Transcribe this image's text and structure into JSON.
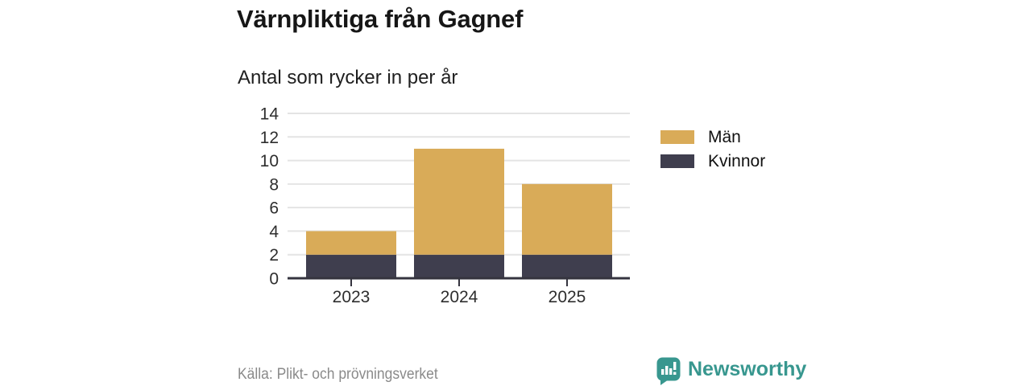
{
  "header": {
    "title": "Värnpliktiga från Gagnef",
    "subtitle": "Antal som rycker in per år"
  },
  "chart_data": {
    "type": "bar",
    "stacked": true,
    "title": "Värnpliktiga från Gagnef",
    "subtitle": "Antal som rycker in per år",
    "categories": [
      "2023",
      "2024",
      "2025"
    ],
    "series": [
      {
        "name": "Kvinnor",
        "color": "#3f3e4e",
        "values": [
          2,
          2,
          2
        ]
      },
      {
        "name": "Män",
        "color": "#d9ab58",
        "values": [
          2,
          9,
          6
        ]
      }
    ],
    "stack_totals": [
      4,
      11,
      8
    ],
    "yticks": [
      0,
      2,
      4,
      6,
      8,
      10,
      12,
      14
    ],
    "ylim": [
      0,
      14
    ],
    "xlabel": "",
    "ylabel": "",
    "grid": "horizontal",
    "gridline_color": "#e4e4e4",
    "axis_color": "#35343f",
    "legend_position": "right",
    "legend_order": [
      "Män",
      "Kvinnor"
    ]
  },
  "footer": {
    "source": "Källa: Plikt- och prövningsverket",
    "brand": "Newsworthy",
    "brand_color": "#38978f"
  }
}
